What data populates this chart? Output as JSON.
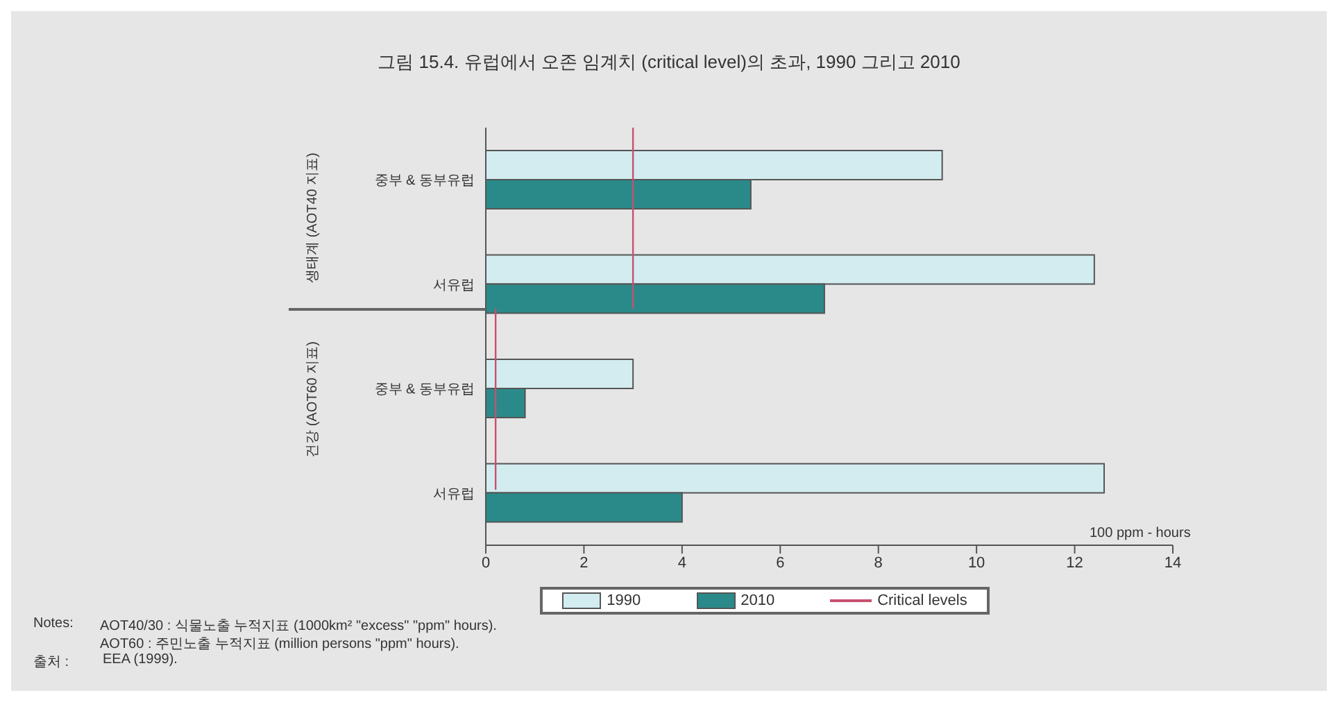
{
  "chart_data": {
    "type": "bar",
    "orientation": "horizontal",
    "title": "그림 15.4. 유럽에서 오존 임계치 (critical level)의 초과, 1990 그리고 2010",
    "xlabel": "100 ppm - hours",
    "categories": [
      "중부 & 동부유럽",
      "서유럽",
      "중부 & 동부유럽",
      "서유럽"
    ],
    "series": [
      {
        "name": "1990",
        "color": "#d3ecef",
        "values": [
          9.3,
          12.4,
          3.0,
          12.6
        ]
      },
      {
        "name": "2010",
        "color": "#2a8a8a",
        "values": [
          5.4,
          6.9,
          0.8,
          4.0
        ]
      }
    ],
    "xlim": [
      0,
      14
    ],
    "xticks": [
      0,
      2,
      4,
      6,
      8,
      10,
      12,
      14
    ],
    "ref_lines": [
      {
        "axis": "x",
        "value": 3.0,
        "label": "Critical levels",
        "color": "#c8506e"
      },
      {
        "axis": "x",
        "value": 0.2,
        "color": "#c8506e"
      }
    ],
    "legend": "bottom",
    "annotations": [
      "생태계 (AOT40 지표)",
      "건강 (AOT60 지표)",
      "Notes:",
      "AOT40/30 : 식물노출 누적지표 (1000km² \"excess\" \"ppm\" hours).",
      "AOT60 : 주민노출 누적지표 (million persons \"ppm\" hours).",
      "출처 :",
      "EEA (1999)."
    ]
  }
}
